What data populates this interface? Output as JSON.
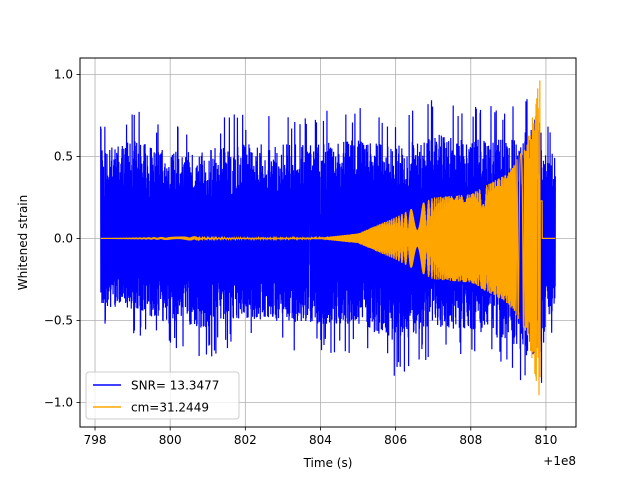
{
  "chart_data": {
    "type": "line",
    "title": "",
    "xlabel": "Time (s)",
    "ylabel": "Whitened strain",
    "x_offset_label": "+1e8",
    "xlim": [
      797.6,
      810.8
    ],
    "ylim": [
      -1.15,
      1.1
    ],
    "x_ticks": [
      798,
      800,
      802,
      804,
      806,
      808,
      810
    ],
    "x_tick_labels": [
      "798",
      "800",
      "802",
      "804",
      "806",
      "808",
      "810"
    ],
    "y_ticks": [
      -1.0,
      -0.5,
      0.0,
      0.5,
      1.0
    ],
    "y_tick_labels": [
      "−1.0",
      "−0.5",
      "0.0",
      "0.5",
      "1.0"
    ],
    "grid": true,
    "legend_position": "lower-left",
    "series": [
      {
        "name": "SNR= 13.3477",
        "color": "#0000ff",
        "kind": "whitened noise data",
        "x_range": [
          798.15,
          810.25
        ],
        "approx_envelope": [
          {
            "x": 798.2,
            "y_max": 0.73,
            "y_min": -0.55
          },
          {
            "x": 799.0,
            "y_max": 0.8,
            "y_min": -0.58
          },
          {
            "x": 800.0,
            "y_max": 0.7,
            "y_min": -0.7
          },
          {
            "x": 801.0,
            "y_max": 0.73,
            "y_min": -0.73
          },
          {
            "x": 802.0,
            "y_max": 0.77,
            "y_min": -0.65
          },
          {
            "x": 803.0,
            "y_max": 0.78,
            "y_min": -0.68
          },
          {
            "x": 804.0,
            "y_max": 0.78,
            "y_min": -0.7
          },
          {
            "x": 805.0,
            "y_max": 0.8,
            "y_min": -0.7
          },
          {
            "x": 806.0,
            "y_max": 0.75,
            "y_min": -0.85
          },
          {
            "x": 807.0,
            "y_max": 0.85,
            "y_min": -0.72
          },
          {
            "x": 808.0,
            "y_max": 0.8,
            "y_min": -0.75
          },
          {
            "x": 809.0,
            "y_max": 0.82,
            "y_min": -0.83
          },
          {
            "x": 809.8,
            "y_max": 1.0,
            "y_min": -1.05
          },
          {
            "x": 810.2,
            "y_max": 0.55,
            "y_min": -0.55
          }
        ]
      },
      {
        "name": "cm=31.2449",
        "color": "#ffa500",
        "kind": "template chirp",
        "x_range": [
          798.15,
          810.25
        ],
        "merger_time": 809.85,
        "approx_envelope": [
          {
            "x": 798.2,
            "amp": 0.0
          },
          {
            "x": 804.0,
            "amp": 0.005
          },
          {
            "x": 805.0,
            "amp": 0.03
          },
          {
            "x": 806.0,
            "amp": 0.13
          },
          {
            "x": 807.0,
            "amp": 0.25
          },
          {
            "x": 808.0,
            "amp": 0.27
          },
          {
            "x": 809.0,
            "amp": 0.4
          },
          {
            "x": 809.5,
            "amp": 0.58
          },
          {
            "x": 809.85,
            "amp": 1.0
          },
          {
            "x": 810.0,
            "amp": 0.0
          }
        ]
      }
    ]
  }
}
